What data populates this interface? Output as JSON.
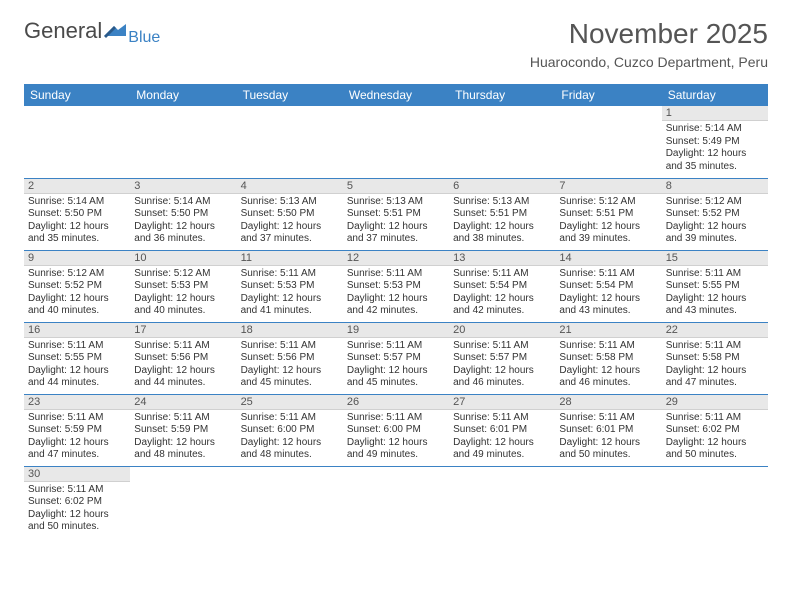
{
  "logo": {
    "textA": "General",
    "textB": "Blue"
  },
  "title": "November 2025",
  "location": "Huarocondo, Cuzco Department, Peru",
  "colors": {
    "header_bg": "#3b82c4",
    "header_text": "#ffffff",
    "daynum_bg": "#e8e8e8",
    "border": "#3b82c4",
    "body_text": "#333333",
    "logo_gray": "#4a4a4a",
    "logo_blue": "#3b82c4"
  },
  "fonts": {
    "body_pt": 10,
    "header_pt": 12,
    "title_pt": 28,
    "location_pt": 14
  },
  "weekdays": [
    "Sunday",
    "Monday",
    "Tuesday",
    "Wednesday",
    "Thursday",
    "Friday",
    "Saturday"
  ],
  "weeks": [
    [
      null,
      null,
      null,
      null,
      null,
      null,
      {
        "n": "1",
        "sr": "Sunrise: 5:14 AM",
        "ss": "Sunset: 5:49 PM",
        "d1": "Daylight: 12 hours",
        "d2": "and 35 minutes."
      }
    ],
    [
      {
        "n": "2",
        "sr": "Sunrise: 5:14 AM",
        "ss": "Sunset: 5:50 PM",
        "d1": "Daylight: 12 hours",
        "d2": "and 35 minutes."
      },
      {
        "n": "3",
        "sr": "Sunrise: 5:14 AM",
        "ss": "Sunset: 5:50 PM",
        "d1": "Daylight: 12 hours",
        "d2": "and 36 minutes."
      },
      {
        "n": "4",
        "sr": "Sunrise: 5:13 AM",
        "ss": "Sunset: 5:50 PM",
        "d1": "Daylight: 12 hours",
        "d2": "and 37 minutes."
      },
      {
        "n": "5",
        "sr": "Sunrise: 5:13 AM",
        "ss": "Sunset: 5:51 PM",
        "d1": "Daylight: 12 hours",
        "d2": "and 37 minutes."
      },
      {
        "n": "6",
        "sr": "Sunrise: 5:13 AM",
        "ss": "Sunset: 5:51 PM",
        "d1": "Daylight: 12 hours",
        "d2": "and 38 minutes."
      },
      {
        "n": "7",
        "sr": "Sunrise: 5:12 AM",
        "ss": "Sunset: 5:51 PM",
        "d1": "Daylight: 12 hours",
        "d2": "and 39 minutes."
      },
      {
        "n": "8",
        "sr": "Sunrise: 5:12 AM",
        "ss": "Sunset: 5:52 PM",
        "d1": "Daylight: 12 hours",
        "d2": "and 39 minutes."
      }
    ],
    [
      {
        "n": "9",
        "sr": "Sunrise: 5:12 AM",
        "ss": "Sunset: 5:52 PM",
        "d1": "Daylight: 12 hours",
        "d2": "and 40 minutes."
      },
      {
        "n": "10",
        "sr": "Sunrise: 5:12 AM",
        "ss": "Sunset: 5:53 PM",
        "d1": "Daylight: 12 hours",
        "d2": "and 40 minutes."
      },
      {
        "n": "11",
        "sr": "Sunrise: 5:11 AM",
        "ss": "Sunset: 5:53 PM",
        "d1": "Daylight: 12 hours",
        "d2": "and 41 minutes."
      },
      {
        "n": "12",
        "sr": "Sunrise: 5:11 AM",
        "ss": "Sunset: 5:53 PM",
        "d1": "Daylight: 12 hours",
        "d2": "and 42 minutes."
      },
      {
        "n": "13",
        "sr": "Sunrise: 5:11 AM",
        "ss": "Sunset: 5:54 PM",
        "d1": "Daylight: 12 hours",
        "d2": "and 42 minutes."
      },
      {
        "n": "14",
        "sr": "Sunrise: 5:11 AM",
        "ss": "Sunset: 5:54 PM",
        "d1": "Daylight: 12 hours",
        "d2": "and 43 minutes."
      },
      {
        "n": "15",
        "sr": "Sunrise: 5:11 AM",
        "ss": "Sunset: 5:55 PM",
        "d1": "Daylight: 12 hours",
        "d2": "and 43 minutes."
      }
    ],
    [
      {
        "n": "16",
        "sr": "Sunrise: 5:11 AM",
        "ss": "Sunset: 5:55 PM",
        "d1": "Daylight: 12 hours",
        "d2": "and 44 minutes."
      },
      {
        "n": "17",
        "sr": "Sunrise: 5:11 AM",
        "ss": "Sunset: 5:56 PM",
        "d1": "Daylight: 12 hours",
        "d2": "and 44 minutes."
      },
      {
        "n": "18",
        "sr": "Sunrise: 5:11 AM",
        "ss": "Sunset: 5:56 PM",
        "d1": "Daylight: 12 hours",
        "d2": "and 45 minutes."
      },
      {
        "n": "19",
        "sr": "Sunrise: 5:11 AM",
        "ss": "Sunset: 5:57 PM",
        "d1": "Daylight: 12 hours",
        "d2": "and 45 minutes."
      },
      {
        "n": "20",
        "sr": "Sunrise: 5:11 AM",
        "ss": "Sunset: 5:57 PM",
        "d1": "Daylight: 12 hours",
        "d2": "and 46 minutes."
      },
      {
        "n": "21",
        "sr": "Sunrise: 5:11 AM",
        "ss": "Sunset: 5:58 PM",
        "d1": "Daylight: 12 hours",
        "d2": "and 46 minutes."
      },
      {
        "n": "22",
        "sr": "Sunrise: 5:11 AM",
        "ss": "Sunset: 5:58 PM",
        "d1": "Daylight: 12 hours",
        "d2": "and 47 minutes."
      }
    ],
    [
      {
        "n": "23",
        "sr": "Sunrise: 5:11 AM",
        "ss": "Sunset: 5:59 PM",
        "d1": "Daylight: 12 hours",
        "d2": "and 47 minutes."
      },
      {
        "n": "24",
        "sr": "Sunrise: 5:11 AM",
        "ss": "Sunset: 5:59 PM",
        "d1": "Daylight: 12 hours",
        "d2": "and 48 minutes."
      },
      {
        "n": "25",
        "sr": "Sunrise: 5:11 AM",
        "ss": "Sunset: 6:00 PM",
        "d1": "Daylight: 12 hours",
        "d2": "and 48 minutes."
      },
      {
        "n": "26",
        "sr": "Sunrise: 5:11 AM",
        "ss": "Sunset: 6:00 PM",
        "d1": "Daylight: 12 hours",
        "d2": "and 49 minutes."
      },
      {
        "n": "27",
        "sr": "Sunrise: 5:11 AM",
        "ss": "Sunset: 6:01 PM",
        "d1": "Daylight: 12 hours",
        "d2": "and 49 minutes."
      },
      {
        "n": "28",
        "sr": "Sunrise: 5:11 AM",
        "ss": "Sunset: 6:01 PM",
        "d1": "Daylight: 12 hours",
        "d2": "and 50 minutes."
      },
      {
        "n": "29",
        "sr": "Sunrise: 5:11 AM",
        "ss": "Sunset: 6:02 PM",
        "d1": "Daylight: 12 hours",
        "d2": "and 50 minutes."
      }
    ],
    [
      {
        "n": "30",
        "sr": "Sunrise: 5:11 AM",
        "ss": "Sunset: 6:02 PM",
        "d1": "Daylight: 12 hours",
        "d2": "and 50 minutes."
      },
      null,
      null,
      null,
      null,
      null,
      null
    ]
  ]
}
